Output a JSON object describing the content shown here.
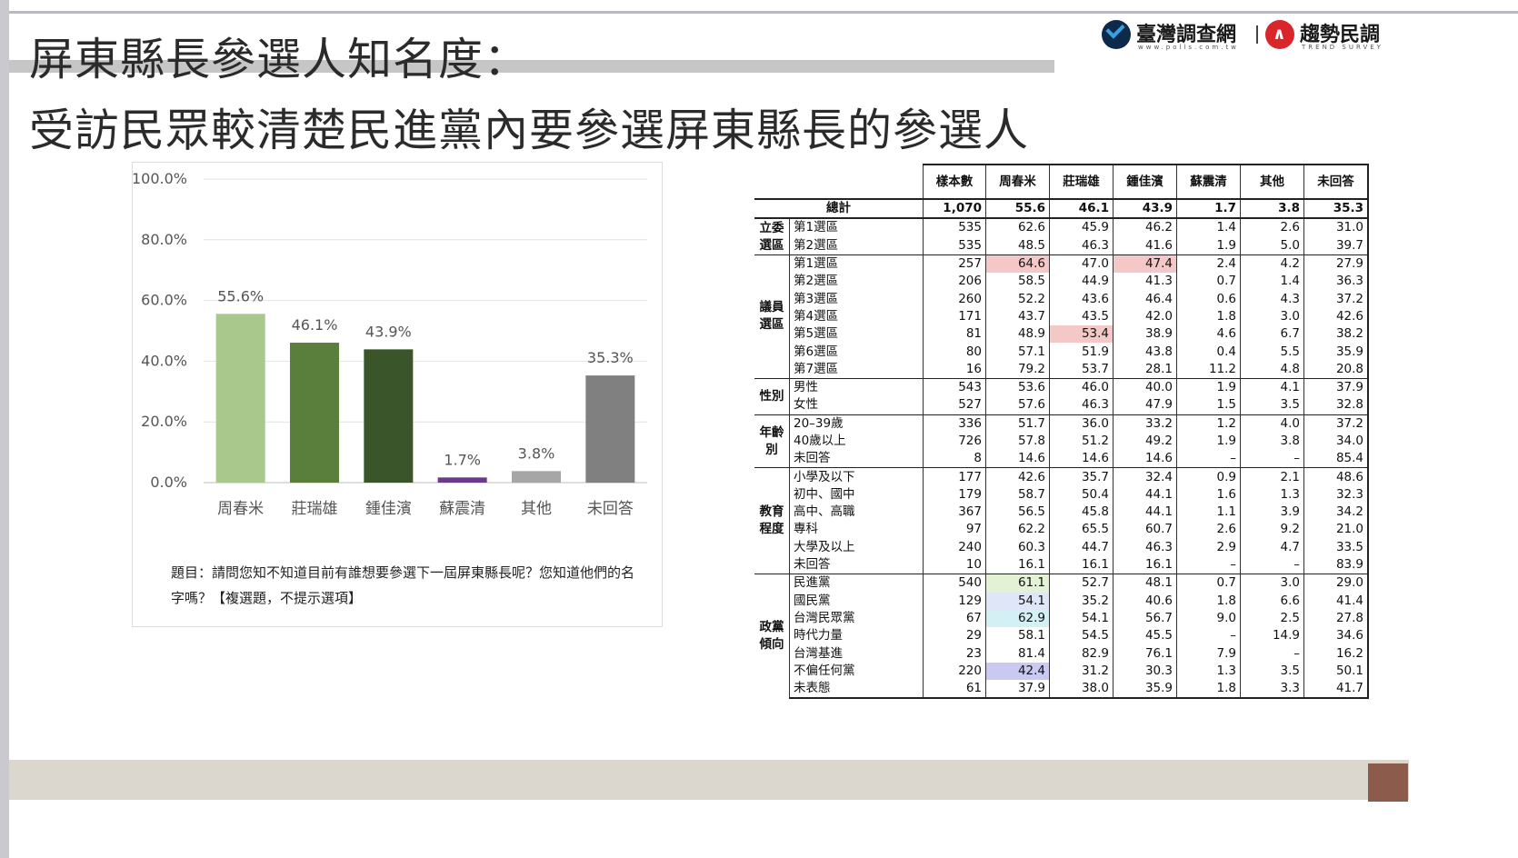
{
  "title": {
    "line1": "屏東縣長參選人知名度：",
    "line2": "受訪民眾較清楚民進黨內要參選屏東縣長的參選人"
  },
  "logos": {
    "brand1": "臺灣調查網",
    "brand1_sub": "www.polls.com.tw",
    "brand2": "趨勢民調",
    "brand2_sub": "TREND SURVEY"
  },
  "colors": {
    "bar1": "#a8c98b",
    "bar2": "#5a7f3c",
    "bar3": "#3a552a",
    "bar4": "#6b3a8c",
    "bar5": "#a6a6a6",
    "bar6": "#808080"
  },
  "chart_data": {
    "type": "bar",
    "categories": [
      "周春米",
      "莊瑞雄",
      "鍾佳濱",
      "蘇震清",
      "其他",
      "未回答"
    ],
    "values": [
      55.6,
      46.1,
      43.9,
      1.7,
      3.8,
      35.3
    ],
    "value_labels": [
      "55.6%",
      "46.1%",
      "43.9%",
      "1.7%",
      "3.8%",
      "35.3%"
    ],
    "yticks": [
      "0.0%",
      "20.0%",
      "40.0%",
      "60.0%",
      "80.0%",
      "100.0%"
    ],
    "ylim": [
      0,
      100
    ],
    "grid": true
  },
  "question": "題目：請問您知不知道目前有誰想要參選下一屆屏東縣長呢？您知道他們的名字嗎？【複選題，不提示選項】",
  "table": {
    "headers": [
      "樣本數",
      "周春米",
      "莊瑞雄",
      "鍾佳濱",
      "蘇震清",
      "其他",
      "未回答"
    ],
    "total": {
      "label": "總計",
      "values": [
        "1,070",
        "55.6",
        "46.1",
        "43.9",
        "1.7",
        "3.8",
        "35.3"
      ]
    },
    "groups": [
      {
        "label": "立委選區",
        "rows": [
          {
            "label": "第1選區",
            "values": [
              "535",
              "62.6",
              "45.9",
              "46.2",
              "1.4",
              "2.6",
              "31.0"
            ]
          },
          {
            "label": "第2選區",
            "values": [
              "535",
              "48.5",
              "46.3",
              "41.6",
              "1.9",
              "5.0",
              "39.7"
            ]
          }
        ]
      },
      {
        "label": "議員選區",
        "rows": [
          {
            "label": "第1選區",
            "values": [
              "257",
              "64.6",
              "47.0",
              "47.4",
              "2.4",
              "4.2",
              "27.9"
            ]
          },
          {
            "label": "第2選區",
            "values": [
              "206",
              "58.5",
              "44.9",
              "41.3",
              "0.7",
              "1.4",
              "36.3"
            ]
          },
          {
            "label": "第3選區",
            "values": [
              "260",
              "52.2",
              "43.6",
              "46.4",
              "0.6",
              "4.3",
              "37.2"
            ]
          },
          {
            "label": "第4選區",
            "values": [
              "171",
              "43.7",
              "43.5",
              "42.0",
              "1.8",
              "3.0",
              "42.6"
            ]
          },
          {
            "label": "第5選區",
            "values": [
              "81",
              "48.9",
              "53.4",
              "38.9",
              "4.6",
              "6.7",
              "38.2"
            ]
          },
          {
            "label": "第6選區",
            "values": [
              "80",
              "57.1",
              "51.9",
              "43.8",
              "0.4",
              "5.5",
              "35.9"
            ]
          },
          {
            "label": "第7選區",
            "values": [
              "16",
              "79.2",
              "53.7",
              "28.1",
              "11.2",
              "4.8",
              "20.8"
            ]
          }
        ]
      },
      {
        "label": "性別",
        "rows": [
          {
            "label": "男性",
            "values": [
              "543",
              "53.6",
              "46.0",
              "40.0",
              "1.9",
              "4.1",
              "37.9"
            ]
          },
          {
            "label": "女性",
            "values": [
              "527",
              "57.6",
              "46.3",
              "47.9",
              "1.5",
              "3.5",
              "32.8"
            ]
          }
        ]
      },
      {
        "label": "年齡別",
        "rows": [
          {
            "label": "20–39歲",
            "values": [
              "336",
              "51.7",
              "36.0",
              "33.2",
              "1.2",
              "4.0",
              "37.2"
            ]
          },
          {
            "label": "40歲以上",
            "values": [
              "726",
              "57.8",
              "51.2",
              "49.2",
              "1.9",
              "3.8",
              "34.0"
            ]
          },
          {
            "label": "未回答",
            "values": [
              "8",
              "14.6",
              "14.6",
              "14.6",
              "–",
              "–",
              "85.4"
            ]
          }
        ]
      },
      {
        "label": "教育程度",
        "rows": [
          {
            "label": "小學及以下",
            "values": [
              "177",
              "42.6",
              "35.7",
              "32.4",
              "0.9",
              "2.1",
              "48.6"
            ]
          },
          {
            "label": "初中、國中",
            "values": [
              "179",
              "58.7",
              "50.4",
              "44.1",
              "1.6",
              "1.3",
              "32.3"
            ]
          },
          {
            "label": "高中、高職",
            "values": [
              "367",
              "56.5",
              "45.8",
              "44.1",
              "1.1",
              "3.9",
              "34.2"
            ]
          },
          {
            "label": "專科",
            "values": [
              "97",
              "62.2",
              "65.5",
              "60.7",
              "2.6",
              "9.2",
              "21.0"
            ]
          },
          {
            "label": "大學及以上",
            "values": [
              "240",
              "60.3",
              "44.7",
              "46.3",
              "2.9",
              "4.7",
              "33.5"
            ]
          },
          {
            "label": "未回答",
            "values": [
              "10",
              "16.1",
              "16.1",
              "16.1",
              "–",
              "–",
              "83.9"
            ]
          }
        ]
      },
      {
        "label": "政黨傾向",
        "rows": [
          {
            "label": "民進黨",
            "values": [
              "540",
              "61.1",
              "52.7",
              "48.1",
              "0.7",
              "3.0",
              "29.0"
            ]
          },
          {
            "label": "國民黨",
            "values": [
              "129",
              "54.1",
              "35.2",
              "40.6",
              "1.8",
              "6.6",
              "41.4"
            ]
          },
          {
            "label": "台灣民眾黨",
            "values": [
              "67",
              "62.9",
              "54.1",
              "56.7",
              "9.0",
              "2.5",
              "27.8"
            ]
          },
          {
            "label": "時代力量",
            "values": [
              "29",
              "58.1",
              "54.5",
              "45.5",
              "–",
              "14.9",
              "34.6"
            ]
          },
          {
            "label": "台灣基進",
            "values": [
              "23",
              "81.4",
              "82.9",
              "76.1",
              "7.9",
              "–",
              "16.2"
            ]
          },
          {
            "label": "不偏任何黨",
            "values": [
              "220",
              "42.4",
              "31.2",
              "30.3",
              "1.3",
              "3.5",
              "50.1"
            ]
          },
          {
            "label": "未表態",
            "values": [
              "61",
              "37.9",
              "38.0",
              "35.9",
              "1.8",
              "3.3",
              "41.7"
            ]
          }
        ]
      }
    ],
    "highlights": {
      "1-0-1": "hl-red",
      "1-0-3": "hl-red",
      "1-4-2": "hl-red",
      "5-0-1": "hl-green",
      "5-1-1": "hl-blue",
      "5-2-1": "hl-cyan",
      "5-5-1": "hl-purple"
    }
  }
}
